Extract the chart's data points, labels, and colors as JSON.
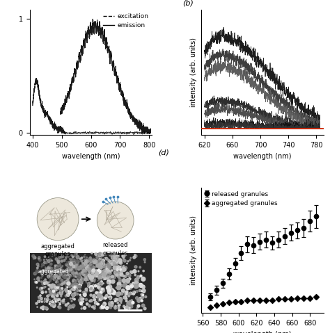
{
  "fig_width": 4.74,
  "fig_height": 4.79,
  "bg_color": "#ffffff",
  "panel_a": {
    "xlim": [
      390,
      810
    ],
    "ylim": [
      -0.02,
      1.08
    ],
    "xticks": [
      400,
      500,
      600,
      700,
      800
    ],
    "yticks": [
      0,
      1
    ],
    "xlabel": "wavelength (nm)",
    "legend_excitation": "excitation",
    "legend_emission": "emission"
  },
  "panel_b": {
    "label": "(b)",
    "xlim": [
      615,
      790
    ],
    "ylim": [
      -0.06,
      1.05
    ],
    "xticks": [
      620,
      660,
      700,
      740,
      780
    ],
    "xlabel": "wavelength (nm)",
    "ylabel": "intensity (arb. units)"
  },
  "panel_d": {
    "label": "(d)",
    "xlim": [
      558,
      695
    ],
    "ylim": [
      -0.04,
      1.05
    ],
    "xticks": [
      560,
      580,
      600,
      620,
      640,
      660,
      680
    ],
    "xlabel": "wavelength (nm)",
    "ylabel": "intensity (arb. units)",
    "released_label": "released granules",
    "aggregated_label": "aggregated granules",
    "released_x": [
      568,
      575,
      582,
      589,
      596,
      603,
      610,
      617,
      624,
      631,
      638,
      645,
      652,
      659,
      666,
      673,
      680,
      687
    ],
    "released_y": [
      0.1,
      0.16,
      0.22,
      0.3,
      0.39,
      0.48,
      0.56,
      0.55,
      0.58,
      0.6,
      0.57,
      0.6,
      0.63,
      0.66,
      0.68,
      0.7,
      0.76,
      0.8
    ],
    "released_err": [
      0.03,
      0.04,
      0.04,
      0.05,
      0.05,
      0.06,
      0.07,
      0.07,
      0.07,
      0.07,
      0.06,
      0.07,
      0.07,
      0.07,
      0.07,
      0.08,
      0.09,
      0.1
    ],
    "aggregated_x": [
      568,
      575,
      582,
      589,
      596,
      603,
      610,
      617,
      624,
      631,
      638,
      645,
      652,
      659,
      666,
      673,
      680,
      687
    ],
    "aggregated_y": [
      0.01,
      0.03,
      0.04,
      0.05,
      0.06,
      0.06,
      0.07,
      0.07,
      0.07,
      0.07,
      0.07,
      0.08,
      0.08,
      0.08,
      0.09,
      0.09,
      0.09,
      0.1
    ],
    "aggregated_err": [
      0.005,
      0.005,
      0.005,
      0.005,
      0.005,
      0.005,
      0.005,
      0.005,
      0.005,
      0.005,
      0.005,
      0.005,
      0.005,
      0.005,
      0.005,
      0.005,
      0.005,
      0.005
    ]
  }
}
